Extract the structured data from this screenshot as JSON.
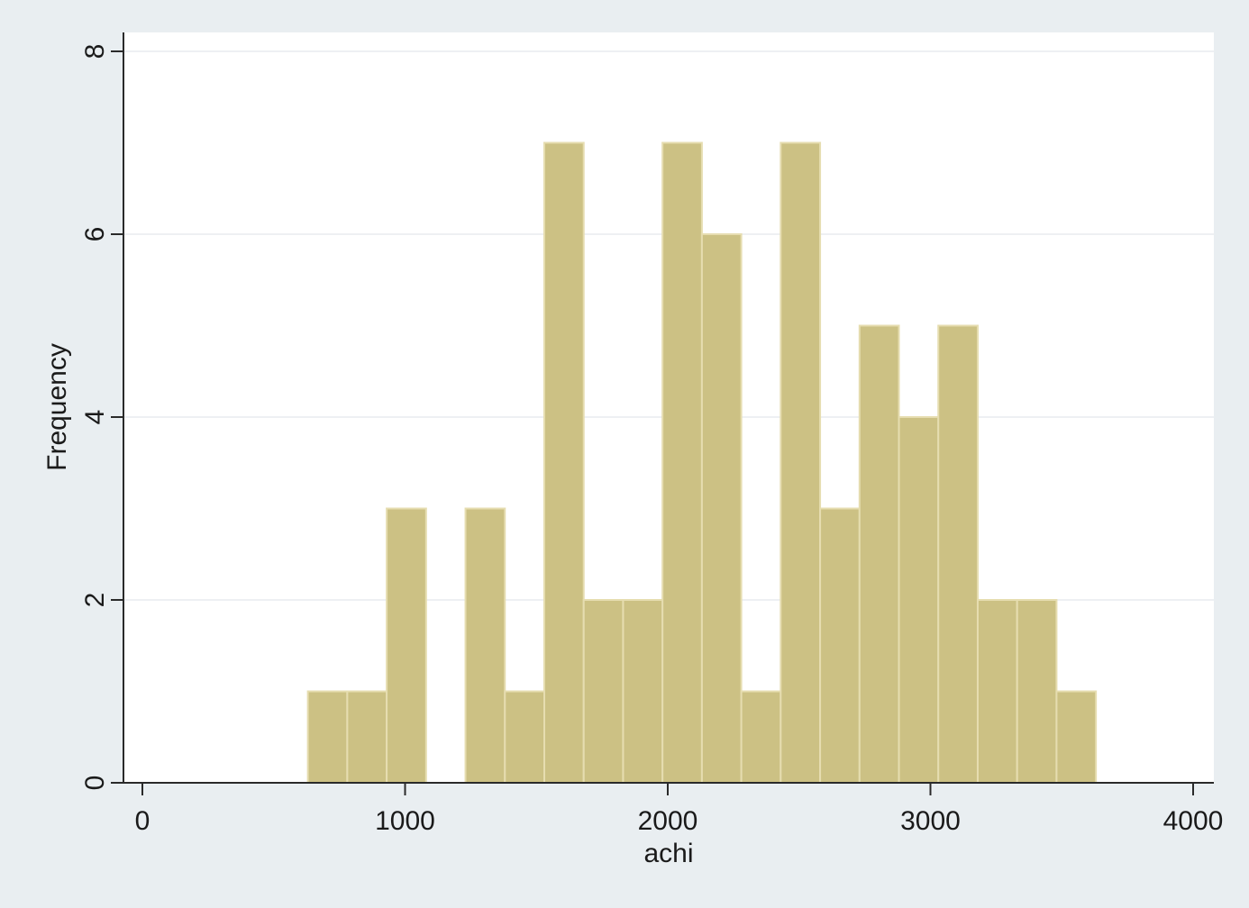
{
  "chart_data": {
    "type": "bar",
    "subtype": "histogram",
    "xlabel": "achi",
    "ylabel": "Frequency",
    "xlim": [
      0,
      4000
    ],
    "ylim": [
      0,
      8
    ],
    "xticks": [
      0,
      1000,
      2000,
      3000,
      4000
    ],
    "yticks": [
      0,
      2,
      4,
      6,
      8
    ],
    "grid": true,
    "legend": "none",
    "bin_width": 150,
    "bins": [
      {
        "start": 630,
        "end": 780,
        "count": 1
      },
      {
        "start": 780,
        "end": 930,
        "count": 1
      },
      {
        "start": 930,
        "end": 1080,
        "count": 3
      },
      {
        "start": 1080,
        "end": 1230,
        "count": 0
      },
      {
        "start": 1230,
        "end": 1380,
        "count": 3
      },
      {
        "start": 1380,
        "end": 1530,
        "count": 1
      },
      {
        "start": 1530,
        "end": 1680,
        "count": 7
      },
      {
        "start": 1680,
        "end": 1830,
        "count": 2
      },
      {
        "start": 1830,
        "end": 1980,
        "count": 2
      },
      {
        "start": 1980,
        "end": 2130,
        "count": 7
      },
      {
        "start": 2130,
        "end": 2280,
        "count": 6
      },
      {
        "start": 2280,
        "end": 2430,
        "count": 1
      },
      {
        "start": 2430,
        "end": 2580,
        "count": 7
      },
      {
        "start": 2580,
        "end": 2730,
        "count": 3
      },
      {
        "start": 2730,
        "end": 2880,
        "count": 5
      },
      {
        "start": 2880,
        "end": 3030,
        "count": 4
      },
      {
        "start": 3030,
        "end": 3180,
        "count": 5
      },
      {
        "start": 3180,
        "end": 3330,
        "count": 2
      },
      {
        "start": 3330,
        "end": 3480,
        "count": 2
      },
      {
        "start": 3480,
        "end": 3630,
        "count": 1
      }
    ]
  },
  "colors": {
    "background": "#e9eef1",
    "plot_area": "#ffffff",
    "bar_fill": "#ccc184",
    "bar_stroke": "#e6ddb0",
    "gridline": "#e8ecef",
    "axis": "#2a2a2a"
  }
}
